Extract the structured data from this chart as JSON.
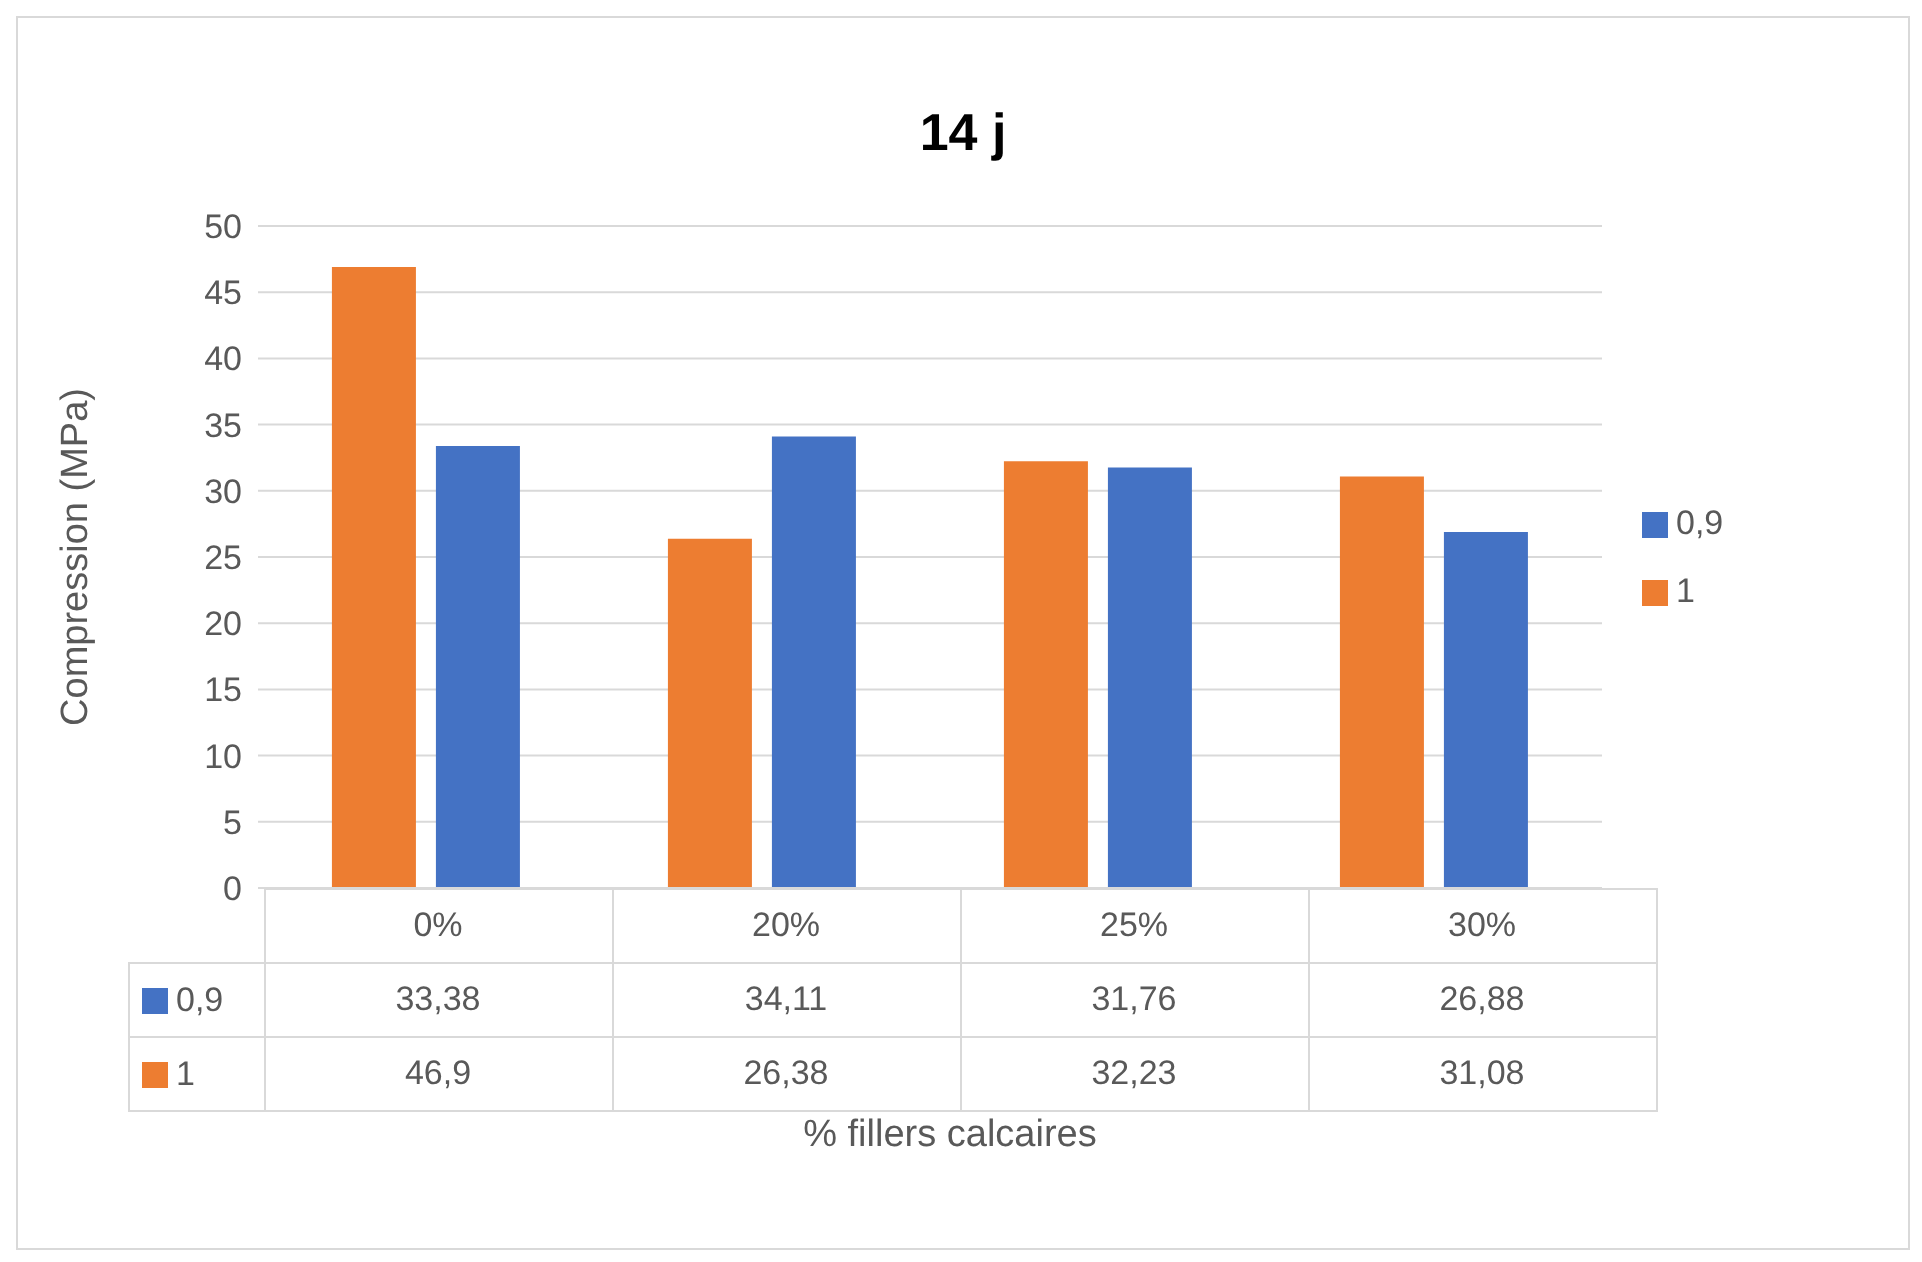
{
  "chart_data": {
    "type": "bar",
    "title": "14 j",
    "xlabel": "% fillers calcaires",
    "ylabel": "Compression (MPa)",
    "categories": [
      "0%",
      "20%",
      "25%",
      "30%"
    ],
    "series": [
      {
        "name": "0,9",
        "color": "#4472c4",
        "values": [
          33.38,
          34.11,
          31.76,
          26.88
        ],
        "value_labels": [
          "33,38",
          "34,11",
          "31,76",
          "26,88"
        ]
      },
      {
        "name": "1",
        "color": "#ed7d31",
        "values": [
          46.9,
          26.38,
          32.23,
          31.08
        ],
        "value_labels": [
          "46,9",
          "26,38",
          "32,23",
          "31,08"
        ]
      }
    ],
    "ylim": [
      0,
      50
    ],
    "yticks": [
      0,
      5,
      10,
      15,
      20,
      25,
      30,
      35,
      40,
      45,
      50
    ],
    "grid": "y",
    "legend": "right"
  }
}
